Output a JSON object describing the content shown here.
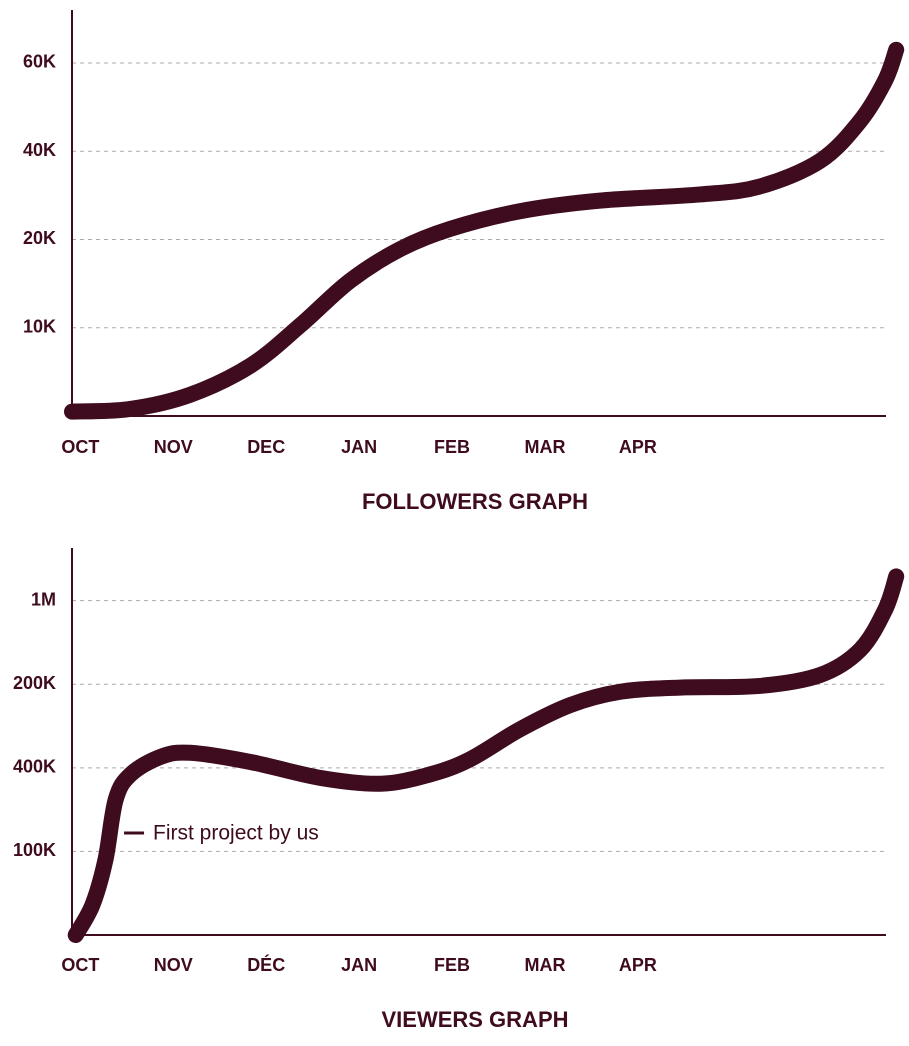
{
  "chart_data": [
    {
      "type": "line",
      "title": "FOLLOWERS GRAPH",
      "ylevels": [
        "10K",
        "20K",
        "40K",
        "60K"
      ],
      "ylim": [
        0,
        4.6
      ],
      "xlim": [
        -0.09,
        8.67
      ],
      "xticks": [
        {
          "value": 0,
          "label": "OCT"
        },
        {
          "value": 1,
          "label": "NOV"
        },
        {
          "value": 2,
          "label": "DEC"
        },
        {
          "value": 3,
          "label": "JAN"
        },
        {
          "value": 4,
          "label": "FEB"
        },
        {
          "value": 5,
          "label": "MAR"
        },
        {
          "value": 6,
          "label": "APR"
        }
      ],
      "grid": true,
      "series": [
        {
          "color": "#3e0b1f",
          "x": [
            -0.09,
            0.54,
            1.18,
            1.83,
            2.37,
            2.9,
            3.44,
            3.98,
            4.73,
            5.59,
            6.67,
            7.31,
            7.96,
            8.39,
            8.66,
            8.78
          ],
          "values": [
            0.05,
            0.08,
            0.24,
            0.57,
            1.03,
            1.53,
            1.89,
            2.12,
            2.32,
            2.44,
            2.51,
            2.6,
            2.89,
            3.34,
            3.8,
            4.15
          ]
        }
      ]
    },
    {
      "type": "line",
      "title": "VIEWERS GRAPH",
      "ylevels": [
        "100K",
        "400K",
        "200K",
        "1M"
      ],
      "ylim": [
        0,
        4.63
      ],
      "xlim": [
        -0.09,
        8.67
      ],
      "xticks": [
        {
          "value": 0,
          "label": "OCT"
        },
        {
          "value": 1,
          "label": "NOV"
        },
        {
          "value": 2,
          "label": "DÉC"
        },
        {
          "value": 3,
          "label": "JAN"
        },
        {
          "value": 4,
          "label": "FEB"
        },
        {
          "value": 5,
          "label": "MAR"
        },
        {
          "value": 6,
          "label": "APR"
        }
      ],
      "grid": true,
      "annotation": "First project by us",
      "series": [
        {
          "color": "#3e0b1f",
          "x": [
            -0.05,
            0.13,
            0.27,
            0.38,
            0.54,
            0.86,
            1.18,
            1.83,
            2.58,
            3.23,
            3.76,
            4.19,
            4.73,
            5.27,
            5.81,
            6.45,
            7.31,
            7.96,
            8.39,
            8.66,
            8.78
          ],
          "values": [
            0,
            0.36,
            0.9,
            1.62,
            1.92,
            2.13,
            2.18,
            2.07,
            1.88,
            1.81,
            1.92,
            2.1,
            2.46,
            2.75,
            2.91,
            2.96,
            2.98,
            3.11,
            3.41,
            3.89,
            4.29
          ]
        }
      ]
    }
  ]
}
